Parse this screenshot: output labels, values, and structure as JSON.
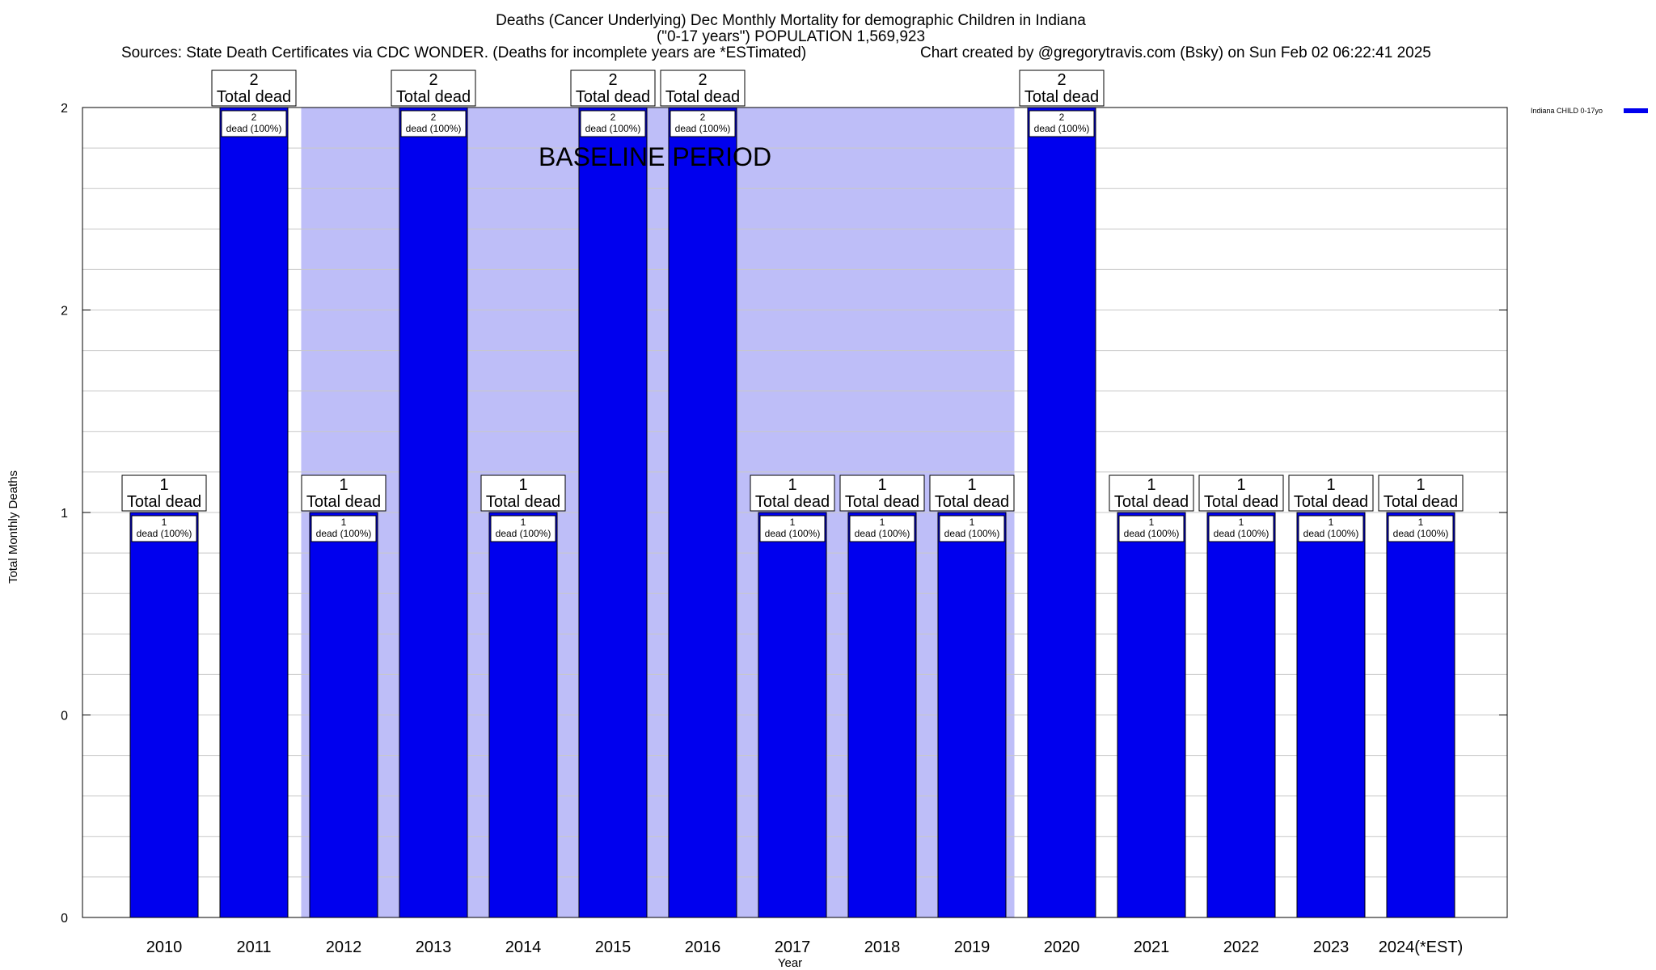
{
  "chart_data": {
    "type": "bar",
    "title_line1": "Deaths (Cancer Underlying) Dec Monthly Mortality for demographic Children in Indiana",
    "title_line2": "(\"0-17 years\") POPULATION 1,569,923",
    "sources": "Sources: State Death Certificates via CDC WONDER. (Deaths for incomplete years are *ESTimated)",
    "credit": "Chart created by @gregorytravis.com (Bsky) on Sun Feb 02 06:22:41 2025",
    "xlabel": "Year",
    "ylabel": "Total Monthly Deaths",
    "ylim": [
      0,
      2
    ],
    "yticks": [
      {
        "value": 0,
        "label": "0"
      },
      {
        "value": 0.5,
        "label": "0"
      },
      {
        "value": 1,
        "label": "1"
      },
      {
        "value": 1.5,
        "label": "2"
      },
      {
        "value": 2,
        "label": "2"
      }
    ],
    "minor_grid_step": 0.1,
    "categories": [
      "2010",
      "2011",
      "2012",
      "2013",
      "2014",
      "2015",
      "2016",
      "2017",
      "2018",
      "2019",
      "2020",
      "2021",
      "2022",
      "2023",
      "2024(*EST)"
    ],
    "values": [
      1,
      2,
      1,
      2,
      1,
      2,
      2,
      1,
      1,
      1,
      2,
      1,
      1,
      1,
      1
    ],
    "top_label_suffix": "Total dead",
    "inner_label_suffix": "dead (100%)",
    "baseline_period": {
      "label": "BASELINE PERIOD",
      "start_category": "2012",
      "end_category": "2019"
    },
    "legend": {
      "position": "top-right",
      "entries": [
        {
          "label": "Indiana CHILD 0-17yo",
          "color": "#0000ee"
        }
      ]
    },
    "colors": {
      "bar": "#0000ee",
      "baseline_band": "#bebef8",
      "grid": "#c8c8c8",
      "axis": "#000000"
    }
  }
}
